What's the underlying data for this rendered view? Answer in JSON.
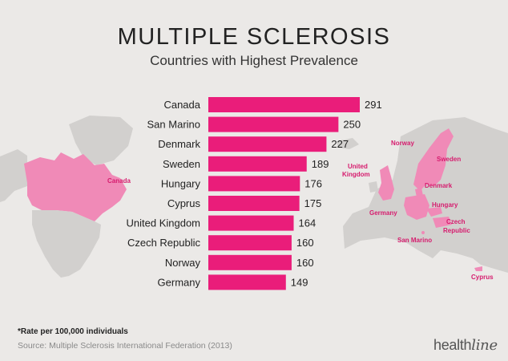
{
  "title": "MULTIPLE SCLEROSIS",
  "subtitle": "Countries with Highest Prevalence",
  "footnote": "*Rate per 100,000 individuals",
  "source": "Source: Multiple Sclerosis International Federation (2013)",
  "brand": {
    "part1": "health",
    "part2": "line"
  },
  "colors": {
    "bar": "#ea1d7a",
    "highlight": "#f08ab7",
    "land": "#d2d0ce",
    "background": "#ebe9e7",
    "label_pink": "#d61c6e"
  },
  "map_labels": [
    {
      "id": "canada",
      "text": "Canada"
    },
    {
      "id": "norway",
      "text": "Norway"
    },
    {
      "id": "sweden",
      "text": "Sweden"
    },
    {
      "id": "uk1",
      "text": "United"
    },
    {
      "id": "uk2",
      "text": "Kingdom"
    },
    {
      "id": "denmark",
      "text": "Denmark"
    },
    {
      "id": "germany",
      "text": "Germany"
    },
    {
      "id": "hungary",
      "text": "Hungary"
    },
    {
      "id": "czech1",
      "text": "Czech"
    },
    {
      "id": "czech2",
      "text": "Republic"
    },
    {
      "id": "sanmarino",
      "text": "San Marino"
    },
    {
      "id": "cyprus",
      "text": "Cyprus"
    }
  ],
  "chart_data": {
    "type": "bar",
    "orientation": "horizontal",
    "title": "MULTIPLE SCLEROSIS",
    "subtitle": "Countries with Highest Prevalence",
    "categories": [
      "Canada",
      "San Marino",
      "Denmark",
      "Sweden",
      "Hungary",
      "Cyprus",
      "United Kingdom",
      "Czech Republic",
      "Norway",
      "Germany"
    ],
    "values": [
      291,
      250,
      227,
      189,
      176,
      175,
      164,
      160,
      160,
      149
    ],
    "xlim": [
      0,
      291
    ],
    "grid": false,
    "legend": "none"
  }
}
